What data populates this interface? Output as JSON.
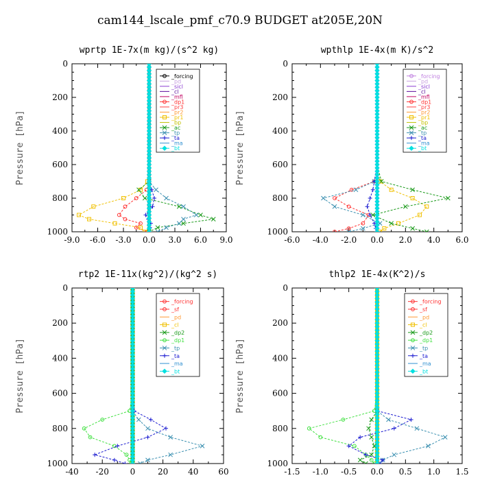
{
  "figure_title": "cam144_lscale_pmf_c70.9  BUDGET at205E,20N",
  "chart_data": [
    {
      "type": "line",
      "title": "wprtp  1E-7x(m kg)/(s^2 kg)",
      "ylabel": "Pressure [hPa]",
      "xlim": [
        -9,
        9
      ],
      "xticks": [
        "-9.0",
        "-6.0",
        "-3.0",
        "0.0",
        "3.0",
        "6.0",
        "9.0"
      ],
      "ylim": [
        1000,
        0
      ],
      "yticks": [
        "0",
        "200",
        "400",
        "600",
        "800",
        "1000"
      ],
      "y": [
        700,
        750,
        800,
        850,
        900,
        925,
        950,
        975,
        1000
      ],
      "series": [
        {
          "name": "_forcing",
          "color": "#000000",
          "marker": "circle",
          "values": [
            0,
            0,
            0,
            0,
            0,
            0,
            0,
            0,
            0
          ]
        },
        {
          "name": "_pd",
          "color": "#c8a0e0",
          "marker": "none",
          "values": [
            0,
            0,
            0,
            0,
            0,
            0,
            0,
            0,
            0
          ]
        },
        {
          "name": "_sicl",
          "color": "#8a3ad0",
          "marker": "none",
          "values": [
            0,
            0,
            0,
            0,
            0,
            0,
            0,
            0,
            0
          ]
        },
        {
          "name": "_cl",
          "color": "#5a0a9a",
          "marker": "none",
          "values": [
            0,
            0,
            0,
            0,
            0,
            0,
            0,
            0,
            0
          ]
        },
        {
          "name": "_mfl",
          "color": "#c00060",
          "marker": "none",
          "values": [
            0,
            0,
            0,
            0,
            0,
            0,
            0,
            0,
            0
          ]
        },
        {
          "name": "_dp1",
          "color": "#ff3030",
          "marker": "circle",
          "values": [
            0,
            -0.3,
            -1.5,
            -2.8,
            -3.5,
            -2.8,
            -1.0,
            -1.5,
            -0.2
          ]
        },
        {
          "name": "_pr3",
          "color": "#ff4040",
          "marker": "none",
          "values": [
            0,
            0,
            0,
            0,
            0,
            0,
            0,
            0,
            0
          ]
        },
        {
          "name": "_pr2",
          "color": "#ff9933",
          "marker": "none",
          "values": [
            0,
            0,
            0,
            0,
            0,
            0,
            0,
            0,
            0
          ]
        },
        {
          "name": "_pr1",
          "color": "#f0c000",
          "marker": "square",
          "values": [
            -0.2,
            -1.0,
            -3.0,
            -6.5,
            -8.2,
            -7.0,
            -4.0,
            -1.0,
            -0.5
          ]
        },
        {
          "name": "_bp",
          "color": "#c0c000",
          "marker": "none",
          "values": [
            0,
            0,
            0,
            0,
            0,
            0,
            0,
            0,
            0
          ]
        },
        {
          "name": "_ac",
          "color": "#1a9a1a",
          "marker": "x",
          "values": [
            0,
            -1.2,
            -0.5,
            3.5,
            6.0,
            7.5,
            4.0,
            1.0,
            0
          ]
        },
        {
          "name": "_tp",
          "color": "#3a8fb0",
          "marker": "x",
          "values": [
            0,
            0.8,
            2.0,
            4.0,
            5.5,
            4.0,
            3.5,
            2.0,
            1.0
          ]
        },
        {
          "name": "_ta",
          "color": "#1a1ad0",
          "marker": "plus",
          "values": [
            0,
            0.3,
            0.6,
            0.4,
            -0.4,
            -0.1,
            0.2,
            0.1,
            0
          ]
        },
        {
          "name": "_ma",
          "color": "#3090d0",
          "marker": "none",
          "values": [
            0,
            0,
            0,
            0,
            0,
            0,
            0,
            0,
            0
          ]
        },
        {
          "name": "_bt",
          "color": "#00e0e0",
          "marker": "diamond",
          "values": [
            0,
            0,
            0,
            0,
            0,
            0,
            0,
            0,
            0
          ]
        }
      ]
    },
    {
      "type": "line",
      "title": "wpthlp  1E-4x(m K)/s^2",
      "ylabel": "Pressure [hPa]",
      "xlim": [
        -6,
        6
      ],
      "xticks": [
        "-6.0",
        "-4.0",
        "-2.0",
        "0.0",
        "2.0",
        "4.0",
        "6.0"
      ],
      "ylim": [
        1000,
        0
      ],
      "yticks": [
        "0",
        "200",
        "400",
        "600",
        "800",
        "1000"
      ],
      "y": [
        700,
        750,
        800,
        850,
        900,
        950,
        980,
        1000
      ],
      "series": [
        {
          "name": "_forcing",
          "color": "#c080e0",
          "marker": "circle",
          "values": [
            0,
            0,
            0,
            0,
            0,
            0,
            0,
            0
          ]
        },
        {
          "name": "_pd",
          "color": "#c8a0e0",
          "marker": "none",
          "values": [
            0,
            0,
            0,
            0,
            0,
            0,
            0,
            0
          ]
        },
        {
          "name": "_sicl",
          "color": "#8a3ad0",
          "marker": "none",
          "values": [
            0,
            0,
            0,
            0,
            0,
            0,
            0,
            0
          ]
        },
        {
          "name": "_cl",
          "color": "#5a0a9a",
          "marker": "none",
          "values": [
            0,
            0,
            0,
            0,
            0,
            0,
            0,
            0
          ]
        },
        {
          "name": "_mfl",
          "color": "#c00060",
          "marker": "none",
          "values": [
            0,
            0,
            0,
            0,
            0,
            0,
            0,
            0
          ]
        },
        {
          "name": "_dp1",
          "color": "#ff3030",
          "marker": "circle",
          "values": [
            -0.2,
            -1.8,
            -3.0,
            -2.0,
            -0.6,
            -1.0,
            -2.0,
            -3.0
          ]
        },
        {
          "name": "_pr3",
          "color": "#ff4040",
          "marker": "none",
          "values": [
            0,
            0,
            0,
            0,
            0,
            0,
            0,
            0
          ]
        },
        {
          "name": "_pr2",
          "color": "#ff9933",
          "marker": "none",
          "values": [
            0,
            0,
            0,
            0,
            0,
            0,
            0,
            0
          ]
        },
        {
          "name": "_pr1",
          "color": "#f0c000",
          "marker": "square",
          "values": [
            0.2,
            1.0,
            2.5,
            3.5,
            3.0,
            1.5,
            0.5,
            0.2
          ]
        },
        {
          "name": "_bp",
          "color": "#c0c000",
          "marker": "none",
          "values": [
            0,
            0,
            0,
            0,
            0,
            0,
            0,
            0
          ]
        },
        {
          "name": "_ac",
          "color": "#1a9a1a",
          "marker": "x",
          "values": [
            0.3,
            2.5,
            5.0,
            2.0,
            -0.3,
            1.0,
            2.5,
            3.5
          ]
        },
        {
          "name": "_tp",
          "color": "#3a8fb0",
          "marker": "x",
          "values": [
            -0.2,
            -1.5,
            -3.8,
            -3.0,
            -1.0,
            0.2,
            -1.0,
            -2.0
          ]
        },
        {
          "name": "_ta",
          "color": "#1a1ad0",
          "marker": "plus",
          "values": [
            -0.2,
            -0.3,
            -0.5,
            -0.7,
            -0.5,
            -0.2,
            -0.1,
            0
          ]
        },
        {
          "name": "_ma",
          "color": "#3090d0",
          "marker": "none",
          "values": [
            0,
            0,
            0,
            0,
            0,
            0,
            0,
            0
          ]
        },
        {
          "name": "_bt",
          "color": "#00e0e0",
          "marker": "diamond",
          "values": [
            0,
            0,
            0,
            0,
            0,
            0,
            0,
            0
          ]
        }
      ]
    },
    {
      "type": "line",
      "title": "rtp2  1E-11x(kg^2)/(kg^2 s)",
      "ylabel": "Pressure [hPa]",
      "xlim": [
        -40,
        60
      ],
      "xticks": [
        "-40",
        "-20",
        "0",
        "20",
        "40",
        "60"
      ],
      "ylim": [
        1000,
        0
      ],
      "yticks": [
        "0",
        "200",
        "400",
        "600",
        "800",
        "1000"
      ],
      "y": [
        700,
        750,
        800,
        850,
        900,
        950,
        980,
        1000
      ],
      "series": [
        {
          "name": "_forcing",
          "color": "#ff3030",
          "marker": "circle",
          "values": [
            0,
            0,
            0,
            0,
            0,
            0,
            0,
            0
          ]
        },
        {
          "name": "_sf",
          "color": "#ff3030",
          "marker": "circle",
          "values": [
            0,
            0,
            0,
            0,
            0,
            0,
            0,
            0
          ]
        },
        {
          "name": "_pd",
          "color": "#ff9933",
          "marker": "none",
          "values": [
            0,
            0,
            0,
            0,
            0,
            0,
            0,
            0
          ]
        },
        {
          "name": "_cl",
          "color": "#f0c000",
          "marker": "square",
          "values": [
            0,
            0,
            0,
            0,
            0,
            0,
            0,
            0
          ]
        },
        {
          "name": "_dp2",
          "color": "#1a9a1a",
          "marker": "x",
          "values": [
            0,
            0,
            0,
            0,
            0,
            0,
            0,
            0
          ]
        },
        {
          "name": "_dp1",
          "color": "#40e040",
          "marker": "circle",
          "values": [
            -2,
            -20,
            -32,
            -28,
            -12,
            -4,
            -2,
            -1
          ]
        },
        {
          "name": "_tp",
          "color": "#3a8fb0",
          "marker": "x",
          "values": [
            0,
            4,
            10,
            25,
            46,
            25,
            10,
            5
          ]
        },
        {
          "name": "_ta",
          "color": "#1a1ad0",
          "marker": "plus",
          "values": [
            1,
            12,
            22,
            10,
            -10,
            -25,
            -12,
            -5
          ]
        },
        {
          "name": "_ma",
          "color": "#3090d0",
          "marker": "none",
          "values": [
            0,
            0,
            0,
            0,
            0,
            0,
            0,
            0
          ]
        },
        {
          "name": "_bt",
          "color": "#00e0e0",
          "marker": "diamond",
          "values": [
            0,
            0,
            0,
            0,
            0,
            0,
            0,
            0
          ]
        }
      ]
    },
    {
      "type": "line",
      "title": "thlp2  1E-4x(K^2)/s",
      "ylabel": "Pressure [hPa]",
      "xlim": [
        -1.5,
        1.5
      ],
      "xticks": [
        "-1.5",
        "-1.0",
        "-0.5",
        "0.0",
        "0.5",
        "1.0",
        "1.5"
      ],
      "ylim": [
        1000,
        0
      ],
      "yticks": [
        "0",
        "200",
        "400",
        "600",
        "800",
        "1000"
      ],
      "y": [
        700,
        750,
        800,
        850,
        900,
        950,
        980,
        1000
      ],
      "series": [
        {
          "name": "_forcing",
          "color": "#ff3030",
          "marker": "circle",
          "values": [
            0,
            0,
            0,
            0,
            0,
            0,
            0,
            0
          ]
        },
        {
          "name": "_sf",
          "color": "#ff3030",
          "marker": "circle",
          "values": [
            0,
            0,
            0,
            0,
            0,
            0,
            0,
            0
          ]
        },
        {
          "name": "_pd",
          "color": "#ff9933",
          "marker": "none",
          "values": [
            0,
            0,
            0,
            0,
            0,
            0,
            0,
            0
          ]
        },
        {
          "name": "_cl",
          "color": "#f0c000",
          "marker": "square",
          "values": [
            0,
            0,
            0,
            0,
            0,
            0,
            0,
            0
          ]
        },
        {
          "name": "_dp2",
          "color": "#1a9a1a",
          "marker": "x",
          "values": [
            0,
            -0.1,
            -0.15,
            -0.1,
            -0.05,
            -0.1,
            -0.3,
            -0.2
          ]
        },
        {
          "name": "_dp1",
          "color": "#40e040",
          "marker": "circle",
          "values": [
            -0.05,
            -0.6,
            -1.2,
            -1.0,
            -0.4,
            -0.2,
            -0.1,
            -0.05
          ]
        },
        {
          "name": "_tp",
          "color": "#3a8fb0",
          "marker": "x",
          "values": [
            0,
            0.2,
            0.7,
            1.2,
            0.9,
            0.3,
            0.1,
            0.05
          ]
        },
        {
          "name": "_ta",
          "color": "#1a1ad0",
          "marker": "plus",
          "values": [
            0,
            0.6,
            0.3,
            -0.3,
            -0.5,
            -0.2,
            0.1,
            0.05
          ]
        },
        {
          "name": "_ma",
          "color": "#3090d0",
          "marker": "none",
          "values": [
            0,
            0,
            0,
            0,
            0,
            0,
            0,
            0
          ]
        },
        {
          "name": "_bt",
          "color": "#00e0e0",
          "marker": "diamond",
          "values": [
            0,
            0,
            0,
            0,
            0,
            0,
            0,
            0
          ]
        }
      ]
    }
  ]
}
